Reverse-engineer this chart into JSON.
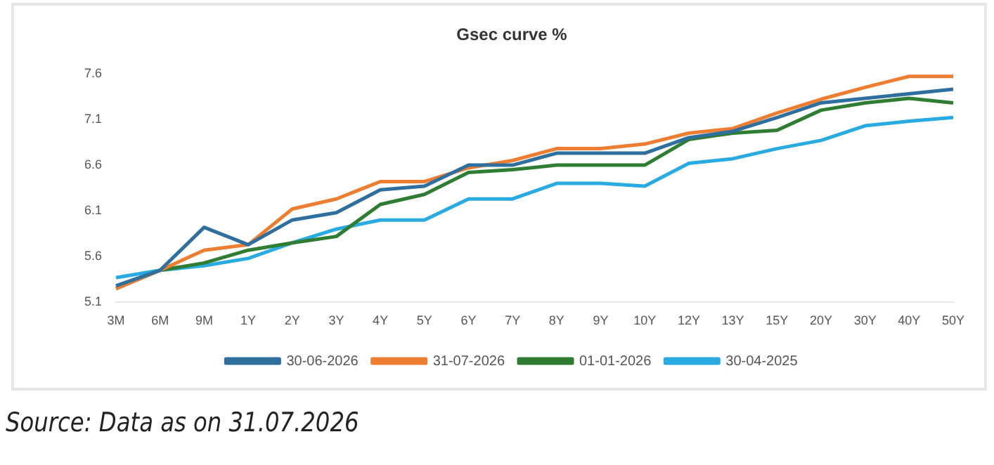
{
  "chart_data": {
    "type": "line",
    "title": "Gsec curve %",
    "categories": [
      "3M",
      "6M",
      "9M",
      "1Y",
      "2Y",
      "3Y",
      "4Y",
      "5Y",
      "6Y",
      "7Y",
      "8Y",
      "9Y",
      "10Y",
      "12Y",
      "13Y",
      "15Y",
      "20Y",
      "30Y",
      "40Y",
      "50Y"
    ],
    "series": [
      {
        "name": "30-06-2026",
        "color": "#2e6f9e",
        "values": [
          5.28,
          5.45,
          5.92,
          5.73,
          6.0,
          6.08,
          6.33,
          6.37,
          6.6,
          6.6,
          6.73,
          6.73,
          6.73,
          6.9,
          6.97,
          7.12,
          7.28,
          7.33,
          7.38,
          7.43
        ]
      },
      {
        "name": "31-07-2026",
        "color": "#ed7d31",
        "values": [
          5.25,
          5.45,
          5.67,
          5.73,
          6.12,
          6.23,
          6.42,
          6.42,
          6.57,
          6.65,
          6.78,
          6.78,
          6.83,
          6.95,
          7.0,
          7.17,
          7.32,
          7.45,
          7.57,
          7.57
        ]
      },
      {
        "name": "01-01-2026",
        "color": "#2e7d32",
        "values": [
          5.25,
          5.45,
          5.53,
          5.67,
          5.75,
          5.82,
          6.17,
          6.28,
          6.52,
          6.55,
          6.6,
          6.6,
          6.6,
          6.88,
          6.95,
          6.98,
          7.2,
          7.28,
          7.33,
          7.28
        ]
      },
      {
        "name": "30-04-2025",
        "color": "#29abe2",
        "values": [
          5.37,
          5.45,
          5.5,
          5.58,
          5.75,
          5.9,
          6.0,
          6.0,
          6.23,
          6.23,
          6.4,
          6.4,
          6.37,
          6.62,
          6.67,
          6.78,
          6.87,
          7.03,
          7.08,
          7.12
        ]
      }
    ],
    "ylim": [
      5.1,
      7.6
    ],
    "yticks": [
      5.1,
      5.6,
      6.1,
      6.6,
      7.1,
      7.6
    ],
    "grid": false,
    "legend": "bottom",
    "marker": "none",
    "line_style": "solid",
    "annotations": [
      "Source: Data as on 31.07.2026"
    ]
  }
}
